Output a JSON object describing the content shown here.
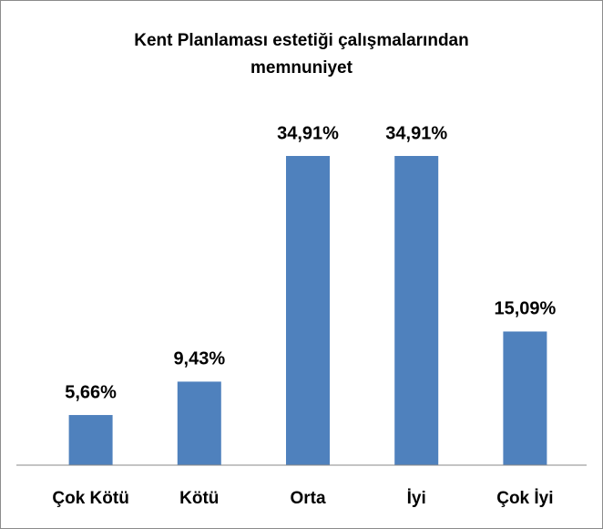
{
  "chart_data": {
    "type": "bar",
    "title": "Kent Planlaması estetiği çalışmalarından memnuniyet",
    "categories": [
      "Çok Kötü",
      "Kötü",
      "Orta",
      "İyi",
      "Çok İyi"
    ],
    "values": [
      5.66,
      9.43,
      34.91,
      34.91,
      15.09
    ],
    "value_labels": [
      "5,66%",
      "9,43%",
      "34,91%",
      "34,91%",
      "15,09%"
    ],
    "color": "#4f81bd"
  }
}
